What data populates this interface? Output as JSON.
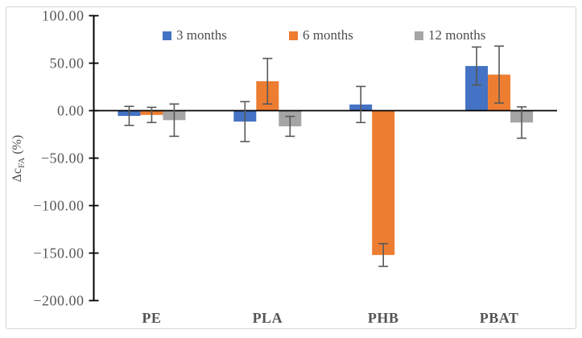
{
  "figure": {
    "background": "#ffffff",
    "border_color": "#d4d4d4"
  },
  "chart_data": {
    "type": "bar",
    "title": "",
    "categories": [
      "PE",
      "PLA",
      "PHB",
      "PBAT"
    ],
    "series": [
      {
        "name": "3 months",
        "color": "#4472C4",
        "values": [
          -5.5,
          -11.5,
          6.5,
          47
        ],
        "errors": [
          10,
          21,
          19,
          20
        ]
      },
      {
        "name": "6 months",
        "color": "#ED7D31",
        "values": [
          -4.5,
          31,
          -152,
          38
        ],
        "errors": [
          8,
          24,
          12,
          30
        ]
      },
      {
        "name": "12 months",
        "color": "#A5A5A5",
        "values": [
          -10,
          -16.5,
          0,
          -12.5
        ],
        "errors": [
          17,
          10.5,
          0,
          16.5
        ]
      }
    ],
    "xlabel": "",
    "ylabel": "ΔcFA (%)",
    "ylabel_main": "Δc",
    "ylabel_sub": "FA",
    "ylabel_unit": " (%)",
    "ylim": [
      -200,
      100
    ],
    "ytick_values": [
      100,
      50,
      0,
      -50,
      -100,
      -150,
      -200
    ],
    "ytick_labels": [
      "100.00",
      "50.00",
      "0.00",
      "−50.00",
      "−100.00",
      "−150.00",
      "−200.00"
    ],
    "grid": false,
    "legend_position": "top",
    "bar_mode": "grouped",
    "error_bars": true,
    "error_bar_color": "#595959",
    "axis_color": "#000000",
    "tick_label_color": "#595959",
    "category_label_color": "#545454"
  }
}
